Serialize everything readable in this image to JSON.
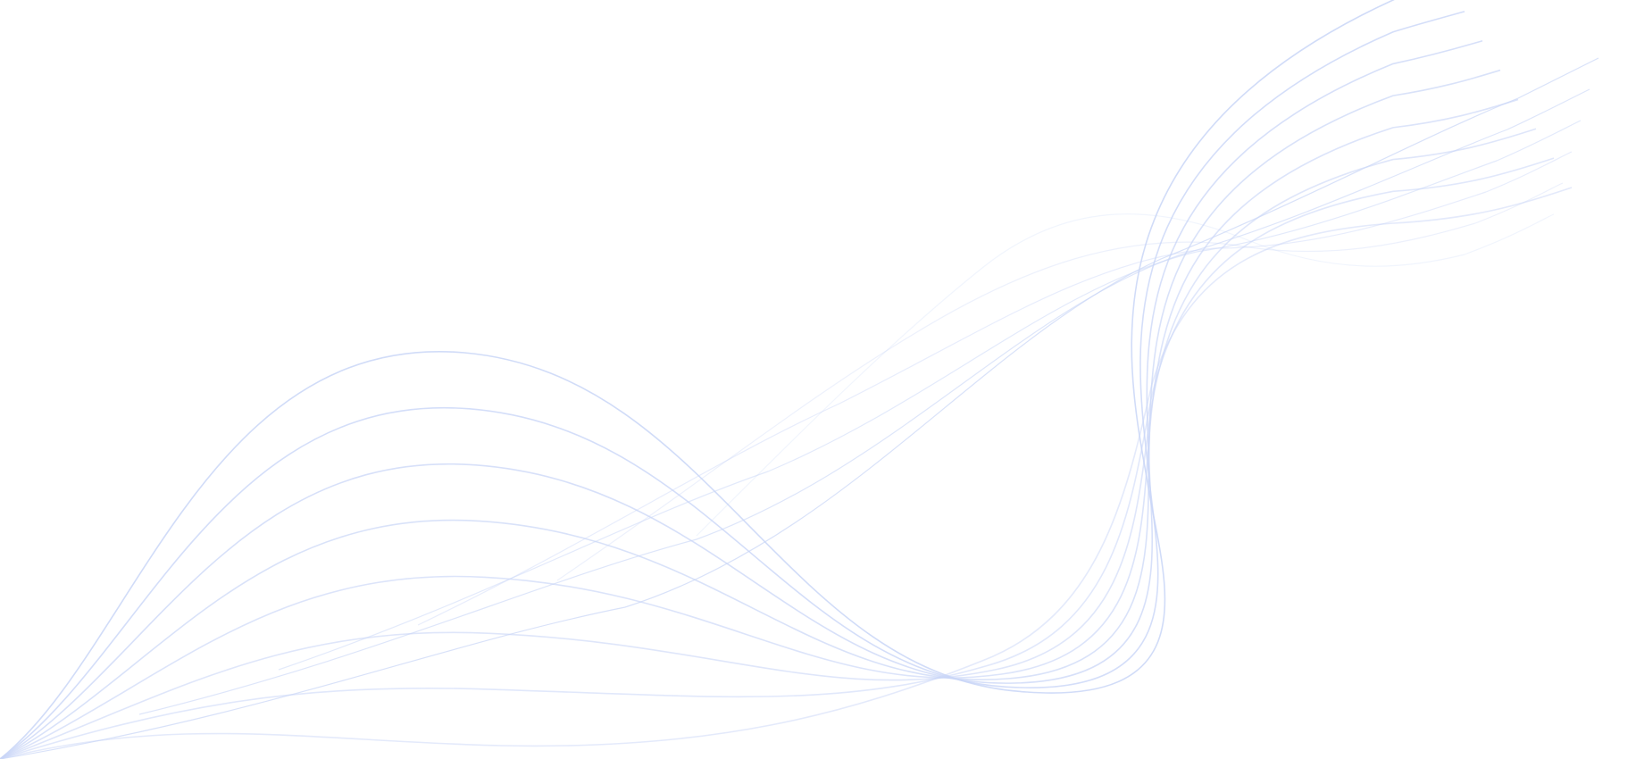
{
  "background": {
    "color": "#ffffff",
    "line_color": "#c9d6f7",
    "pattern": "flowing-wave-lines",
    "wave_family_a_count": 8,
    "wave_family_b_count": 6
  }
}
